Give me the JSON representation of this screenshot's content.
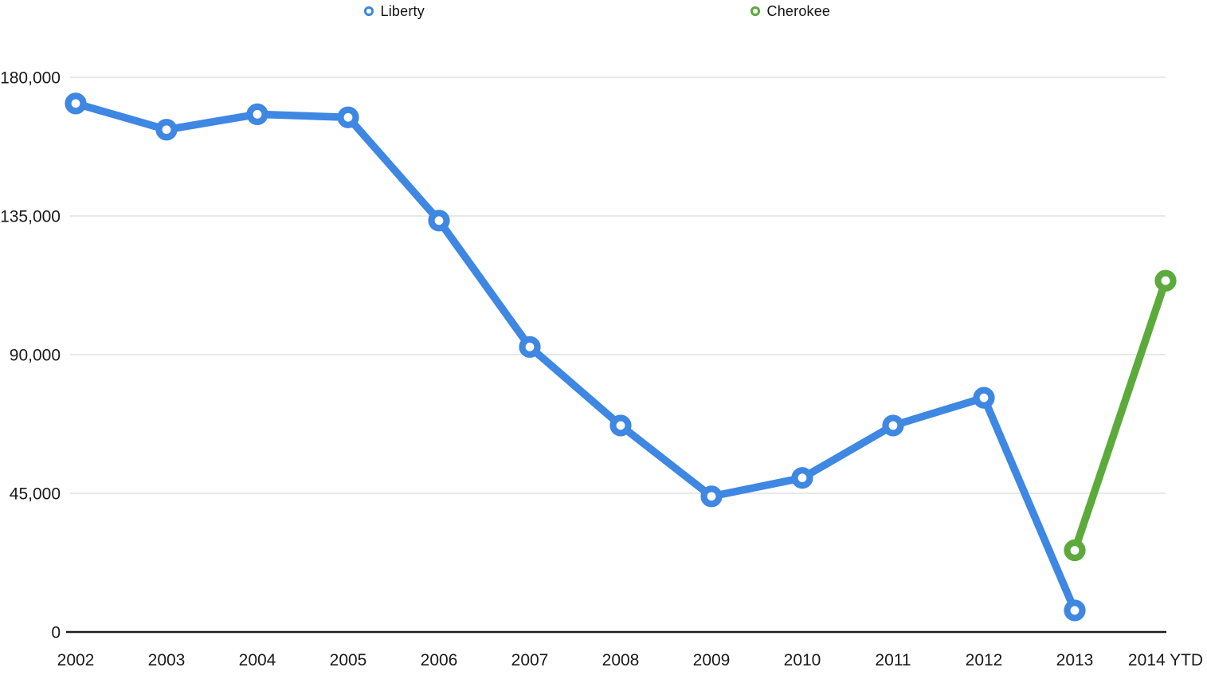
{
  "legend": {
    "items": [
      {
        "label": "Liberty",
        "color": "#3e87e2"
      },
      {
        "label": "Cherokee",
        "color": "#5caa3c"
      }
    ]
  },
  "chart_data": {
    "type": "line",
    "title": "",
    "categories": [
      "2002",
      "2003",
      "2004",
      "2005",
      "2006",
      "2007",
      "2008",
      "2009",
      "2010",
      "2011",
      "2012",
      "2013",
      "2014 YTD"
    ],
    "series": [
      {
        "name": "Liberty",
        "color": "#3e87e2",
        "values": [
          171500,
          163000,
          168000,
          167000,
          133500,
          92500,
          67000,
          44000,
          50000,
          67000,
          76000,
          7000,
          null
        ]
      },
      {
        "name": "Cherokee",
        "color": "#5caa3c",
        "values": [
          null,
          null,
          null,
          null,
          null,
          null,
          null,
          null,
          null,
          null,
          null,
          26500,
          114000
        ]
      }
    ],
    "yticks": [
      {
        "value": 0,
        "label": "0"
      },
      {
        "value": 45000,
        "label": "45,000"
      },
      {
        "value": 90000,
        "label": "90,000"
      },
      {
        "value": 135000,
        "label": "135,000"
      },
      {
        "value": 180000,
        "label": "180,000"
      }
    ],
    "ylim": [
      0,
      180000
    ],
    "grid": true,
    "legend_position": "top",
    "marker_style": "open-circle",
    "colors": {
      "grid_line": "#dadada",
      "axis_line": "#1c1c1c",
      "tick_text": "#1a1a1a"
    }
  }
}
